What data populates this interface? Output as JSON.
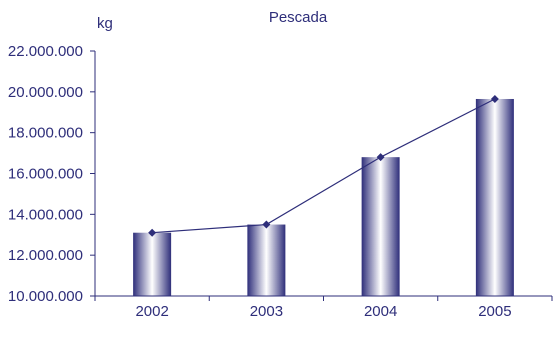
{
  "chart_data": {
    "type": "bar",
    "title": "Pescada",
    "ylabel": "kg",
    "xlabel": "",
    "categories": [
      "2002",
      "2003",
      "2004",
      "2005"
    ],
    "values": [
      13100000,
      13500000,
      16800000,
      19650000
    ],
    "line_values": [
      13100000,
      13500000,
      16800000,
      19650000
    ],
    "ylim": [
      10000000,
      22000000
    ],
    "yticks": [
      10000000,
      12000000,
      14000000,
      16000000,
      18000000,
      20000000,
      22000000
    ],
    "ytick_labels": [
      "10.000.000",
      "12.000.000",
      "14.000.000",
      "16.000.000",
      "18.000.000",
      "20.000.000",
      "22.000.000"
    ],
    "grid": false,
    "colors": {
      "bar_dark": "#2e2e7a",
      "bar_light": "#ffffff",
      "line": "#2e2e7a",
      "axis": "#2e2e7a",
      "text": "#2e2e7a"
    }
  }
}
